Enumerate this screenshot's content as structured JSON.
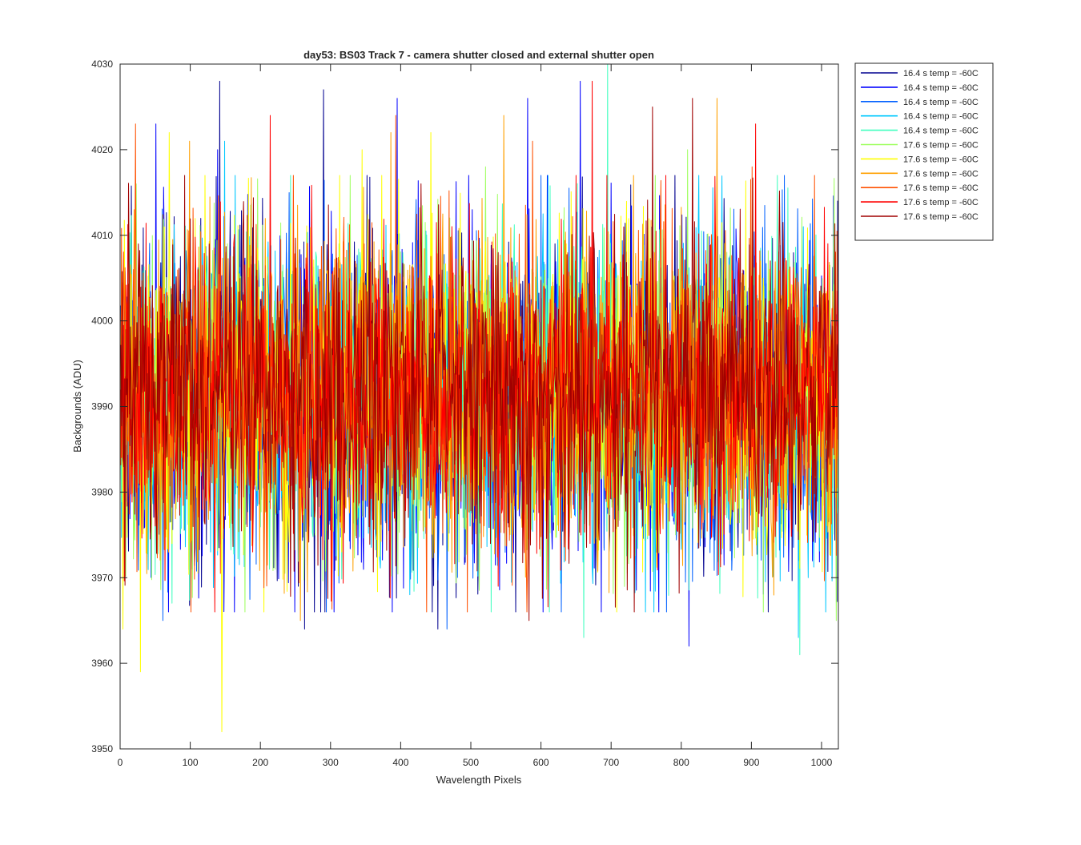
{
  "chart_data": {
    "type": "line",
    "title": "day53: BS03  Track 7 - camera shutter closed and external shutter open",
    "xlabel": "Wavelength Pixels",
    "ylabel": "Backgrounds (ADU)",
    "xlim": [
      0,
      1024
    ],
    "ylim": [
      3950,
      4030
    ],
    "xticks": [
      0,
      100,
      200,
      300,
      400,
      500,
      600,
      700,
      800,
      900,
      1000
    ],
    "yticks": [
      3950,
      3960,
      3970,
      3980,
      3990,
      4000,
      4010,
      4020,
      4030
    ],
    "grid": false,
    "legend_position": "outside-top-right",
    "n_points": 1024,
    "series": [
      {
        "name": "16.4 s temp = -60C",
        "color": "#00008f",
        "mean": 3991,
        "sd": 9.5,
        "key_points": [
          [
            2,
            3999
          ],
          [
            141,
            4028
          ],
          [
            289,
            4027
          ],
          [
            262,
            3964
          ],
          [
            452,
            3964
          ],
          [
            1022,
            4014
          ]
        ]
      },
      {
        "name": "16.4 s temp = -60C",
        "color": "#0000ff",
        "mean": 3991,
        "sd": 9.5,
        "key_points": [
          [
            50,
            4023
          ],
          [
            138,
            4020
          ],
          [
            394,
            4026
          ],
          [
            580,
            4026
          ],
          [
            655,
            4028
          ],
          [
            810,
            3962
          ]
        ]
      },
      {
        "name": "16.4 s temp = -60C",
        "color": "#0060ff",
        "mean": 3991,
        "sd": 9.3,
        "key_points": [
          [
            60,
            3965
          ],
          [
            300,
            3978
          ],
          [
            465,
            3964
          ],
          [
            872,
            3974
          ]
        ]
      },
      {
        "name": "16.4 s temp = -60C",
        "color": "#00c8ff",
        "mean": 3991,
        "sd": 9.3,
        "key_points": [
          [
            148,
            4021
          ],
          [
            412,
            3968
          ],
          [
            966,
            3963
          ],
          [
            980,
            3970
          ]
        ]
      },
      {
        "name": "16.4 s temp = -60C",
        "color": "#40ffbf",
        "mean": 3991,
        "sd": 9.2,
        "key_points": [
          [
            660,
            3963
          ],
          [
            694,
            4030
          ],
          [
            968,
            3961
          ]
        ]
      },
      {
        "name": "17.6 s temp = -60C",
        "color": "#9fff60",
        "mean": 3991,
        "sd": 9.2,
        "key_points": [
          [
            22,
            4016
          ],
          [
            520,
            4018
          ],
          [
            808,
            4020
          ],
          [
            1020,
            3965
          ]
        ]
      },
      {
        "name": "17.6 s temp = -60C",
        "color": "#ffff00",
        "mean": 3991,
        "sd": 9.4,
        "key_points": [
          [
            3,
            3964
          ],
          [
            28,
            3959
          ],
          [
            69,
            4022
          ],
          [
            144,
            3952
          ],
          [
            344,
            4020
          ],
          [
            442,
            4022
          ]
        ]
      },
      {
        "name": "17.6 s temp = -60C",
        "color": "#ffa000",
        "mean": 3992,
        "sd": 9.2,
        "key_points": [
          [
            98,
            4021
          ],
          [
            256,
            3965
          ],
          [
            385,
            4022
          ],
          [
            546,
            4024
          ],
          [
            850,
            4026
          ]
        ]
      },
      {
        "name": "17.6 s temp = -60C",
        "color": "#ff5000",
        "mean": 3992,
        "sd": 9.2,
        "key_points": [
          [
            21,
            4023
          ],
          [
            392,
            4024
          ],
          [
            587,
            4021
          ],
          [
            900,
            4018
          ]
        ]
      },
      {
        "name": "17.6 s temp = -60C",
        "color": "#ff0000",
        "mean": 3992,
        "sd": 9.0,
        "key_points": [
          [
            213,
            4024
          ],
          [
            672,
            4028
          ],
          [
            905,
            4023
          ]
        ]
      },
      {
        "name": "17.6 s temp = -60C",
        "color": "#a00000",
        "mean": 3992,
        "sd": 8.8,
        "key_points": [
          [
            582,
            3965
          ],
          [
            758,
            4025
          ],
          [
            815,
            4026
          ]
        ]
      }
    ]
  }
}
